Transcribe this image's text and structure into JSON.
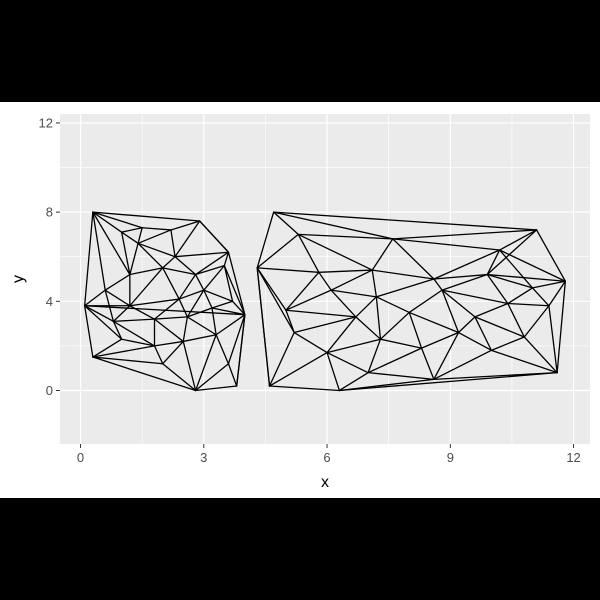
{
  "chart_data": {
    "type": "network",
    "title": "",
    "xlabel": "x",
    "ylabel": "y",
    "xlim": [
      -0.5,
      12.4
    ],
    "ylim": [
      -2.4,
      12.4
    ],
    "x_ticks": [
      0,
      3,
      6,
      9,
      12
    ],
    "y_ticks": [
      0,
      4,
      8,
      12
    ],
    "x_tick_labels": [
      "0",
      "3",
      "6",
      "9",
      "12"
    ],
    "y_tick_labels": [
      "0",
      "4",
      "8",
      "12"
    ],
    "grid": true,
    "panel_background": "#ebebeb",
    "grid_color": "#ffffff",
    "edge_color": "#000000",
    "nodes": [
      [
        0.3,
        8.0
      ],
      [
        0.1,
        3.8
      ],
      [
        0.3,
        1.5
      ],
      [
        2.8,
        0.0
      ],
      [
        3.8,
        0.2
      ],
      [
        4.0,
        3.4
      ],
      [
        3.6,
        6.2
      ],
      [
        2.9,
        7.6
      ],
      [
        1.0,
        7.1
      ],
      [
        1.5,
        7.3
      ],
      [
        2.2,
        7.2
      ],
      [
        0.6,
        4.5
      ],
      [
        1.2,
        5.2
      ],
      [
        2.0,
        5.5
      ],
      [
        2.8,
        5.2
      ],
      [
        3.5,
        5.6
      ],
      [
        0.8,
        3.1
      ],
      [
        1.8,
        3.2
      ],
      [
        2.6,
        3.3
      ],
      [
        3.2,
        3.7
      ],
      [
        1.0,
        2.3
      ],
      [
        1.8,
        2.0
      ],
      [
        2.5,
        2.2
      ],
      [
        3.3,
        2.5
      ],
      [
        3.6,
        1.2
      ],
      [
        2.0,
        1.2
      ],
      [
        1.2,
        3.8
      ],
      [
        2.4,
        4.1
      ],
      [
        3.0,
        4.5
      ],
      [
        3.7,
        4.0
      ],
      [
        2.3,
        6.0
      ],
      [
        1.4,
        6.6
      ],
      [
        4.7,
        8.0
      ],
      [
        4.3,
        5.5
      ],
      [
        4.6,
        0.2
      ],
      [
        6.3,
        0.0
      ],
      [
        11.1,
        7.2
      ],
      [
        11.8,
        4.9
      ],
      [
        11.6,
        0.8
      ],
      [
        5.3,
        7.0
      ],
      [
        7.6,
        6.8
      ],
      [
        10.2,
        6.3
      ],
      [
        5.8,
        5.3
      ],
      [
        7.1,
        5.4
      ],
      [
        8.6,
        5.0
      ],
      [
        9.9,
        5.2
      ],
      [
        11.0,
        4.6
      ],
      [
        5.0,
        3.6
      ],
      [
        6.1,
        4.5
      ],
      [
        6.7,
        3.3
      ],
      [
        7.2,
        4.2
      ],
      [
        8.0,
        3.5
      ],
      [
        8.8,
        4.5
      ],
      [
        9.6,
        3.3
      ],
      [
        10.4,
        3.9
      ],
      [
        11.4,
        3.8
      ],
      [
        5.2,
        2.6
      ],
      [
        6.0,
        1.7
      ],
      [
        7.3,
        2.3
      ],
      [
        8.3,
        1.9
      ],
      [
        9.2,
        2.6
      ],
      [
        10.0,
        1.8
      ],
      [
        10.8,
        2.4
      ],
      [
        7.0,
        0.8
      ],
      [
        8.6,
        0.5
      ]
    ],
    "edges": [
      [
        0,
        7
      ],
      [
        7,
        6
      ],
      [
        6,
        5
      ],
      [
        5,
        4
      ],
      [
        4,
        3
      ],
      [
        3,
        2
      ],
      [
        2,
        1
      ],
      [
        1,
        0
      ],
      [
        0,
        8
      ],
      [
        0,
        9
      ],
      [
        0,
        11
      ],
      [
        0,
        12
      ],
      [
        8,
        9
      ],
      [
        9,
        10
      ],
      [
        10,
        7
      ],
      [
        8,
        12
      ],
      [
        8,
        31
      ],
      [
        9,
        31
      ],
      [
        10,
        31
      ],
      [
        31,
        12
      ],
      [
        31,
        13
      ],
      [
        31,
        30
      ],
      [
        10,
        30
      ],
      [
        7,
        30
      ],
      [
        7,
        6
      ],
      [
        30,
        6
      ],
      [
        30,
        13
      ],
      [
        30,
        14
      ],
      [
        6,
        15
      ],
      [
        6,
        14
      ],
      [
        14,
        15
      ],
      [
        13,
        14
      ],
      [
        12,
        13
      ],
      [
        11,
        12
      ],
      [
        11,
        1
      ],
      [
        11,
        26
      ],
      [
        11,
        16
      ],
      [
        12,
        26
      ],
      [
        13,
        26
      ],
      [
        13,
        27
      ],
      [
        14,
        27
      ],
      [
        14,
        28
      ],
      [
        15,
        28
      ],
      [
        15,
        29
      ],
      [
        15,
        5
      ],
      [
        29,
        5
      ],
      [
        28,
        29
      ],
      [
        27,
        28
      ],
      [
        26,
        27
      ],
      [
        1,
        26
      ],
      [
        1,
        16
      ],
      [
        1,
        20
      ],
      [
        16,
        26
      ],
      [
        16,
        17
      ],
      [
        26,
        17
      ],
      [
        17,
        27
      ],
      [
        17,
        18
      ],
      [
        18,
        27
      ],
      [
        18,
        28
      ],
      [
        18,
        19
      ],
      [
        19,
        28
      ],
      [
        19,
        29
      ],
      [
        19,
        5
      ],
      [
        19,
        23
      ],
      [
        18,
        23
      ],
      [
        18,
        22
      ],
      [
        17,
        22
      ],
      [
        17,
        21
      ],
      [
        16,
        21
      ],
      [
        16,
        20
      ],
      [
        20,
        21
      ],
      [
        20,
        2
      ],
      [
        2,
        21
      ],
      [
        2,
        25
      ],
      [
        21,
        25
      ],
      [
        21,
        22
      ],
      [
        22,
        25
      ],
      [
        22,
        23
      ],
      [
        25,
        3
      ],
      [
        22,
        3
      ],
      [
        23,
        3
      ],
      [
        23,
        24
      ],
      [
        24,
        3
      ],
      [
        24,
        4
      ],
      [
        23,
        5
      ],
      [
        24,
        5
      ],
      [
        5,
        4
      ],
      [
        1,
        5
      ],
      [
        32,
        36
      ],
      [
        36,
        37
      ],
      [
        37,
        38
      ],
      [
        38,
        35
      ],
      [
        35,
        34
      ],
      [
        34,
        33
      ],
      [
        33,
        32
      ],
      [
        32,
        39
      ],
      [
        32,
        40
      ],
      [
        39,
        40
      ],
      [
        33,
        39
      ],
      [
        33,
        42
      ],
      [
        39,
        42
      ],
      [
        40,
        36
      ],
      [
        40,
        41
      ],
      [
        36,
        41
      ],
      [
        41,
        37
      ],
      [
        39,
        43
      ],
      [
        40,
        43
      ],
      [
        40,
        44
      ],
      [
        41,
        44
      ],
      [
        41,
        45
      ],
      [
        36,
        45
      ],
      [
        45,
        37
      ],
      [
        41,
        46
      ],
      [
        45,
        46
      ],
      [
        46,
        37
      ],
      [
        42,
        43
      ],
      [
        42,
        48
      ],
      [
        43,
        48
      ],
      [
        43,
        50
      ],
      [
        43,
        44
      ],
      [
        44,
        50
      ],
      [
        44,
        52
      ],
      [
        44,
        45
      ],
      [
        45,
        52
      ],
      [
        45,
        54
      ],
      [
        46,
        54
      ],
      [
        46,
        55
      ],
      [
        37,
        55
      ],
      [
        33,
        47
      ],
      [
        42,
        47
      ],
      [
        47,
        48
      ],
      [
        48,
        49
      ],
      [
        48,
        50
      ],
      [
        49,
        50
      ],
      [
        50,
        51
      ],
      [
        51,
        52
      ],
      [
        52,
        53
      ],
      [
        53,
        54
      ],
      [
        54,
        55
      ],
      [
        52,
        54
      ],
      [
        47,
        49
      ],
      [
        47,
        56
      ],
      [
        33,
        56
      ],
      [
        33,
        34
      ],
      [
        34,
        56
      ],
      [
        56,
        57
      ],
      [
        49,
        56
      ],
      [
        49,
        57
      ],
      [
        49,
        58
      ],
      [
        51,
        58
      ],
      [
        50,
        58
      ],
      [
        51,
        59
      ],
      [
        51,
        60
      ],
      [
        52,
        60
      ],
      [
        53,
        60
      ],
      [
        53,
        61
      ],
      [
        53,
        62
      ],
      [
        54,
        62
      ],
      [
        55,
        62
      ],
      [
        55,
        38
      ],
      [
        62,
        38
      ],
      [
        61,
        62
      ],
      [
        61,
        38
      ],
      [
        60,
        61
      ],
      [
        59,
        60
      ],
      [
        58,
        59
      ],
      [
        57,
        58
      ],
      [
        57,
        63
      ],
      [
        58,
        63
      ],
      [
        59,
        63
      ],
      [
        59,
        64
      ],
      [
        60,
        64
      ],
      [
        61,
        64
      ],
      [
        64,
        38
      ],
      [
        63,
        64
      ],
      [
        35,
        63
      ],
      [
        35,
        57
      ],
      [
        34,
        57
      ],
      [
        35,
        64
      ]
    ]
  }
}
